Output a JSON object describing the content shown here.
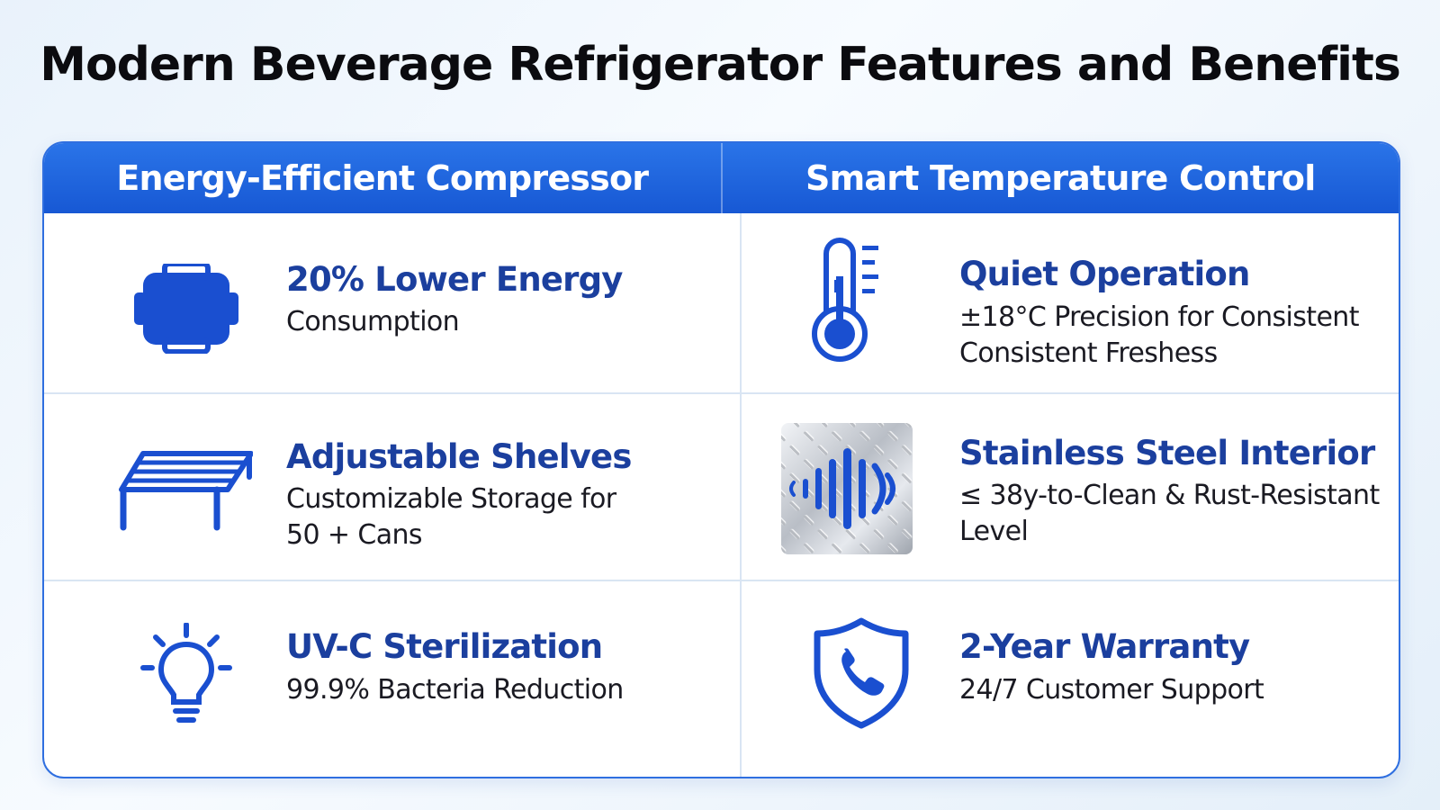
{
  "title": "Modern Beverage Refrigerator Features and Benefits",
  "colors": {
    "accent": "#1f63dc",
    "title_blue": "#1b3f9e",
    "icon_blue": "#1a4fd0",
    "border": "#2f6fe0"
  },
  "columns": [
    {
      "header": "Energy-Efficient Compressor"
    },
    {
      "header": "Smart Temperature Control"
    }
  ],
  "features": [
    {
      "icon": "compressor-icon",
      "title": "20% Lower Energy",
      "lines": [
        "Consumption"
      ]
    },
    {
      "icon": "thermometer-icon",
      "title": "Quiet Operation",
      "lines": [
        "±18°C Precision for Consistent",
        "Consistent Freshess"
      ]
    },
    {
      "icon": "shelf-icon",
      "title": "Adjustable Shelves",
      "lines": [
        "Customizable Storage for",
        "50 + Cans"
      ]
    },
    {
      "icon": "sound-wave-steel-icon",
      "title": "Stainless Steel Interior",
      "lines": [
        "≤ 38y-to-Clean & Rust-Resistant",
        "Level"
      ]
    },
    {
      "icon": "lightbulb-icon",
      "title": "UV-C Sterilization",
      "lines": [
        "99.9% Bacteria Reduction"
      ]
    },
    {
      "icon": "shield-phone-icon",
      "title": "2-Year Warranty",
      "lines": [
        "24/7 Customer Support"
      ]
    }
  ]
}
